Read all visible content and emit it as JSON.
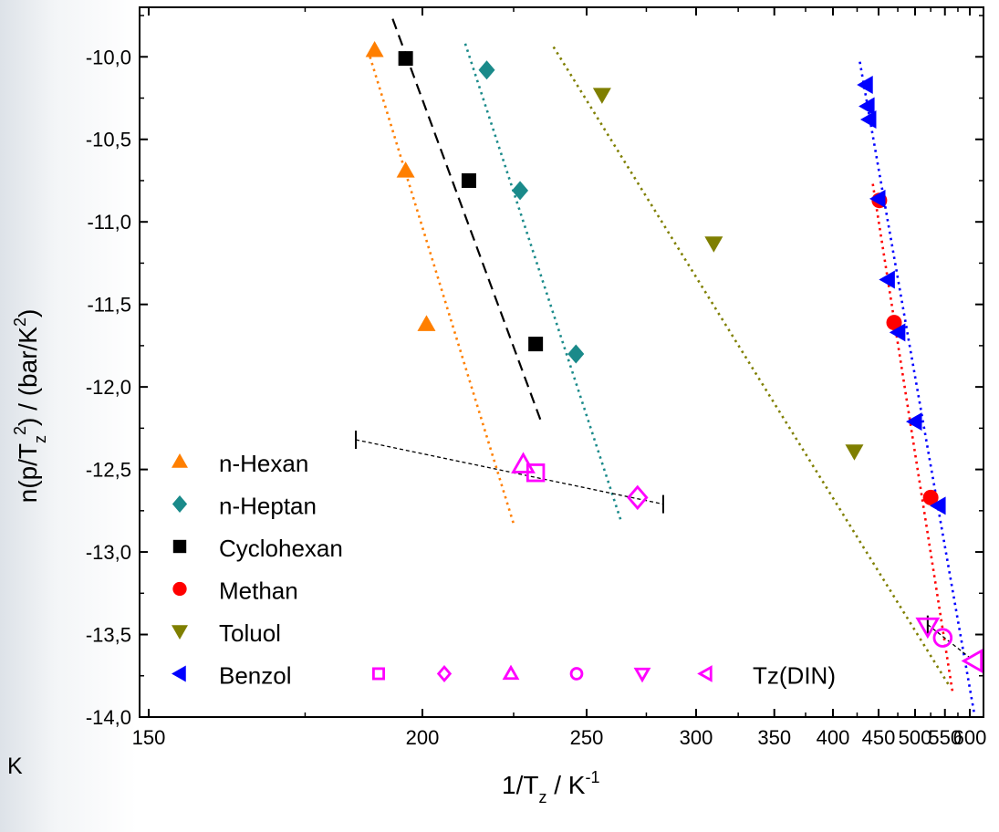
{
  "chart_data": {
    "type": "scatter",
    "xlabel_main": "1/T",
    "xlabel_sub": "z",
    "xlabel_rest": " / K",
    "xlabel_sup": "-1",
    "ylabel_main": "n(p/T",
    "ylabel_sub": "z",
    "ylabel_sup": "2",
    "ylabel_rest": ") / (bar/K",
    "ylabel_sup2": "2",
    "ylabel_end": ")",
    "ylim": [
      -14.0,
      -9.7
    ],
    "yticks": [
      -10.0,
      -10.5,
      -11.0,
      -11.5,
      -12.0,
      -12.5,
      -13.0,
      -13.5,
      -14.0
    ],
    "ytick_labels": [
      "-10,0",
      "-10,5",
      "-11,0",
      "-11,5",
      "-12,0",
      "-12,5",
      "-13,0",
      "-13,5",
      "-14,0"
    ],
    "xscale": "reciprocal",
    "xticks": [
      150,
      200,
      250,
      300,
      350,
      400,
      450,
      500,
      550,
      600
    ],
    "xtick_labels": [
      "150",
      "200",
      "250",
      "300",
      "350",
      "400",
      "450",
      "500",
      "550",
      "600"
    ],
    "legend_position": "bottom-left",
    "series": [
      {
        "name": "n-Hexan",
        "marker": "triangle-up",
        "filled": true,
        "color": "#ff7f00",
        "points": [
          [
            189,
            -9.96
          ],
          [
            196,
            -10.69
          ],
          [
            201,
            -11.62
          ]
        ],
        "fit": {
          "style": "dotted",
          "from": [
            188,
            -10.0
          ],
          "to": [
            225,
            -12.83
          ]
        }
      },
      {
        "name": "n-Heptan",
        "marker": "diamond",
        "filled": true,
        "color": "#1a8a8a",
        "points": [
          [
            217,
            -10.08
          ],
          [
            227,
            -10.81
          ],
          [
            246,
            -11.8
          ]
        ],
        "fit": {
          "style": "dotted",
          "from": [
            211,
            -9.92
          ],
          "to": [
            264,
            -12.82
          ]
        }
      },
      {
        "name": "Cyclohexan",
        "marker": "square",
        "filled": true,
        "color": "#000000",
        "points": [
          [
            196,
            -10.01
          ],
          [
            212,
            -10.75
          ],
          [
            232,
            -11.74
          ]
        ],
        "fit": {
          "style": "dashed",
          "from": [
            193,
            -9.77
          ],
          "to": [
            234,
            -12.22
          ]
        }
      },
      {
        "name": "Methan",
        "marker": "circle",
        "filled": true,
        "color": "#ff0000",
        "points": [
          [
            451,
            -10.87
          ],
          [
            470,
            -11.61
          ],
          [
            525,
            -12.67
          ]
        ],
        "fit": {
          "style": "dotted",
          "from": [
            443,
            -10.77
          ],
          "to": [
            565,
            -13.86
          ]
        }
      },
      {
        "name": "Toluol",
        "marker": "triangle-down",
        "filled": true,
        "color": "#7f7f00",
        "points": [
          [
            256,
            -10.23
          ],
          [
            310,
            -11.13
          ],
          [
            422,
            -12.39
          ]
        ],
        "fit": {
          "style": "dotted",
          "from": [
            238,
            -9.94
          ],
          "to": [
            560,
            -13.82
          ]
        }
      },
      {
        "name": "Benzol",
        "marker": "triangle-left",
        "filled": true,
        "color": "#0000ff",
        "points": [
          [
            435,
            -10.17
          ],
          [
            437,
            -10.3
          ],
          [
            439,
            -10.38
          ],
          [
            450,
            -10.86
          ],
          [
            462,
            -11.35
          ],
          [
            476,
            -11.67
          ],
          [
            500,
            -12.21
          ],
          [
            539,
            -12.72
          ]
        ],
        "fit": {
          "style": "dotted",
          "from": [
            428,
            -10.03
          ],
          "to": [
            610,
            -13.98
          ]
        }
      }
    ],
    "tz_din": {
      "name": "Tz(DIN)",
      "color": "#ff00ff",
      "points": [
        {
          "marker": "triangle-up",
          "x": 228,
          "y": -12.47
        },
        {
          "marker": "square",
          "x": 232,
          "y": -12.52
        },
        {
          "marker": "diamond",
          "x": 271,
          "y": -12.67
        },
        {
          "marker": "triangle-down",
          "x": 520,
          "y": -13.45
        },
        {
          "marker": "circle",
          "x": 546,
          "y": -13.52
        },
        {
          "marker": "triangle-left",
          "x": 609,
          "y": -13.66
        }
      ],
      "fits": [
        {
          "from": [
            185,
            -12.32
          ],
          "to": [
            283,
            -12.71
          ]
        },
        {
          "from": [
            520,
            -13.44
          ],
          "to": [
            600,
            -13.64
          ]
        }
      ],
      "bars": [
        [
          185,
          -12.32
        ],
        [
          283,
          -12.71
        ],
        [
          520,
          -13.44
        ]
      ]
    }
  },
  "outside_label": "K"
}
